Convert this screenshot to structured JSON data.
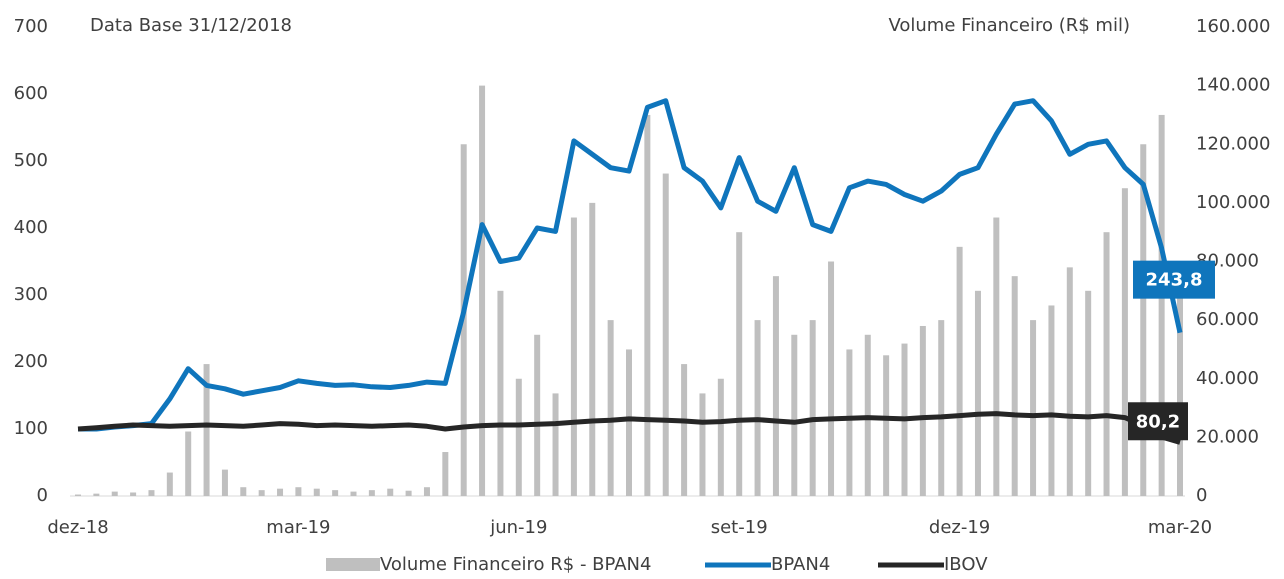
{
  "chart_data": {
    "type": "bar-line",
    "title": "Data Base 31/12/2018",
    "y2_label": "Volume Financeiro (R$ mil)",
    "categories": [
      "dez-18",
      null,
      null,
      null,
      null,
      null,
      null,
      null,
      null,
      null,
      null,
      null,
      "mar-19",
      null,
      null,
      null,
      null,
      null,
      null,
      null,
      null,
      null,
      null,
      null,
      "jun-19",
      null,
      null,
      null,
      null,
      null,
      null,
      null,
      null,
      null,
      null,
      null,
      "set-19",
      null,
      null,
      null,
      null,
      null,
      null,
      null,
      null,
      null,
      null,
      null,
      "dez-19",
      null,
      null,
      null,
      null,
      null,
      null,
      null,
      null,
      null,
      null,
      null,
      "mar-20"
    ],
    "series": [
      {
        "name": "Volume Financeiro R$ - BPAN4",
        "color": "#bfbfbf",
        "axis": "y2",
        "values": [
          500,
          800,
          1500,
          1200,
          2000,
          8000,
          22000,
          45000,
          9000,
          3000,
          2000,
          2500,
          3000,
          2500,
          2000,
          1500,
          2000,
          2500,
          1800,
          3000,
          15000,
          120000,
          140000,
          70000,
          40000,
          55000,
          35000,
          95000,
          100000,
          60000,
          50000,
          130000,
          110000,
          45000,
          35000,
          40000,
          90000,
          60000,
          75000,
          55000,
          60000,
          80000,
          50000,
          55000,
          48000,
          52000,
          58000,
          60000,
          85000,
          70000,
          95000,
          75000,
          60000,
          65000,
          78000,
          70000,
          90000,
          105000,
          120000,
          130000,
          80000
        ]
      },
      {
        "name": "BPAN4",
        "color": "#0f75bc",
        "values": [
          100,
          100,
          103,
          105,
          108,
          145,
          190,
          165,
          160,
          152,
          157,
          162,
          172,
          168,
          165,
          166,
          163,
          162,
          165,
          170,
          168,
          275,
          405,
          350,
          355,
          400,
          395,
          530,
          510,
          490,
          485,
          580,
          590,
          490,
          470,
          430,
          505,
          440,
          425,
          490,
          405,
          395,
          460,
          470,
          465,
          450,
          440,
          455,
          480,
          490,
          540,
          585,
          590,
          560,
          510,
          525,
          530,
          490,
          465,
          370,
          243.8
        ],
        "last_label": "243,8"
      },
      {
        "name": "IBOV",
        "color": "#262626",
        "values": [
          100,
          102,
          104,
          106,
          105,
          104,
          105,
          106,
          105,
          104,
          106,
          108,
          107,
          105,
          106,
          105,
          104,
          105,
          106,
          104,
          100,
          103,
          105,
          106,
          106,
          107,
          108,
          110,
          112,
          113,
          115,
          114,
          113,
          112,
          110,
          111,
          113,
          114,
          112,
          110,
          114,
          115,
          116,
          117,
          116,
          115,
          117,
          118,
          120,
          122,
          123,
          121,
          120,
          121,
          119,
          118,
          120,
          117,
          105,
          88,
          80.2
        ],
        "last_label": "80,2"
      }
    ],
    "ylim": [
      0,
      700
    ],
    "yticks": [
      0,
      100,
      200,
      300,
      400,
      500,
      600,
      700
    ],
    "y2lim": [
      0,
      160000
    ],
    "y2ticks": [
      0,
      {
        "value": 20000,
        "label": "20.000"
      },
      {
        "value": 40000,
        "label": "40.000"
      },
      {
        "value": 60000,
        "label": "60.000"
      },
      {
        "value": 80000,
        "label": "80.000"
      },
      {
        "value": 100000,
        "label": "100.000"
      },
      {
        "value": 120000,
        "label": "120.000"
      },
      {
        "value": 140000,
        "label": "140.000"
      },
      {
        "value": 160000,
        "label": "160.000"
      }
    ],
    "grid": false
  }
}
